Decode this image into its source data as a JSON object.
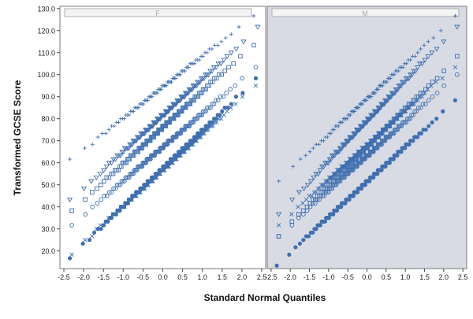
{
  "chart_data": {
    "type": "scatter",
    "xlabel": "Standard Normal Quantiles",
    "ylabel": "Transformed GCSE Score",
    "xlim": [
      -2.6,
      2.6
    ],
    "ylim": [
      12,
      131
    ],
    "x_ticks": [
      "-2.5",
      "-2.0",
      "-1.5",
      "-1.0",
      "-0.5",
      "0.0",
      "0.5",
      "1.0",
      "1.5",
      "2.0",
      "2.5"
    ],
    "y_ticks": [
      "20.0",
      "30.0",
      "40.0",
      "50.0",
      "60.0",
      "70.0",
      "80.0",
      "90.0",
      "100.0",
      "110.0",
      "120.0",
      "130.0"
    ],
    "grid": false,
    "colors": {
      "marker": "#3f6fb0",
      "panel_F_bg": "#ffffff",
      "panel_M_bg": "#d8dbe3",
      "strip_fill": "#f4f4f4",
      "strip_text": "#a8a8a8"
    },
    "panels": [
      {
        "label": "F",
        "series": [
          {
            "marker": "plus",
            "line": {
              "x_range": [
                -2.35,
                2.3
              ],
              "y_range": [
                61,
                127
              ],
              "count": 90
            }
          },
          {
            "marker": "triangle-down",
            "line": {
              "x_range": [
                -2.35,
                2.4
              ],
              "y_range": [
                43,
                121
              ],
              "count": 120
            }
          },
          {
            "marker": "square",
            "line": {
              "x_range": [
                -2.3,
                2.3
              ],
              "y_range": [
                38,
                114
              ],
              "count": 130
            }
          },
          {
            "marker": "circle-open",
            "line": {
              "x_range": [
                -2.3,
                2.35
              ],
              "y_range": [
                32,
                103
              ],
              "count": 130
            }
          },
          {
            "marker": "x",
            "line": {
              "x_range": [
                -2.3,
                2.35
              ],
              "y_range": [
                19,
                95
              ],
              "count": 140
            }
          },
          {
            "marker": "circle-filled",
            "line": {
              "x_range": [
                -2.35,
                2.35
              ],
              "y_range": [
                17,
                98
              ],
              "count": 160
            }
          }
        ]
      },
      {
        "label": "M",
        "series": [
          {
            "marker": "plus",
            "line": {
              "x_range": [
                -2.3,
                2.3
              ],
              "y_range": [
                52,
                126
              ],
              "count": 90
            }
          },
          {
            "marker": "triangle-down",
            "line": {
              "x_range": [
                -2.3,
                2.35
              ],
              "y_range": [
                37,
                122
              ],
              "count": 120
            }
          },
          {
            "marker": "square",
            "line": {
              "x_range": [
                -2.3,
                2.35
              ],
              "y_range": [
                27,
                108
              ],
              "count": 130
            }
          },
          {
            "marker": "circle-open",
            "line": {
              "x_range": [
                -2.3,
                2.35
              ],
              "y_range": [
                27,
                100
              ],
              "count": 130
            }
          },
          {
            "marker": "x",
            "line": {
              "x_range": [
                -2.3,
                2.3
              ],
              "y_range": [
                32,
                104
              ],
              "count": 140
            }
          },
          {
            "marker": "circle-filled",
            "line": {
              "x_range": [
                -2.35,
                2.3
              ],
              "y_range": [
                14,
                88
              ],
              "count": 170
            }
          }
        ]
      }
    ]
  }
}
